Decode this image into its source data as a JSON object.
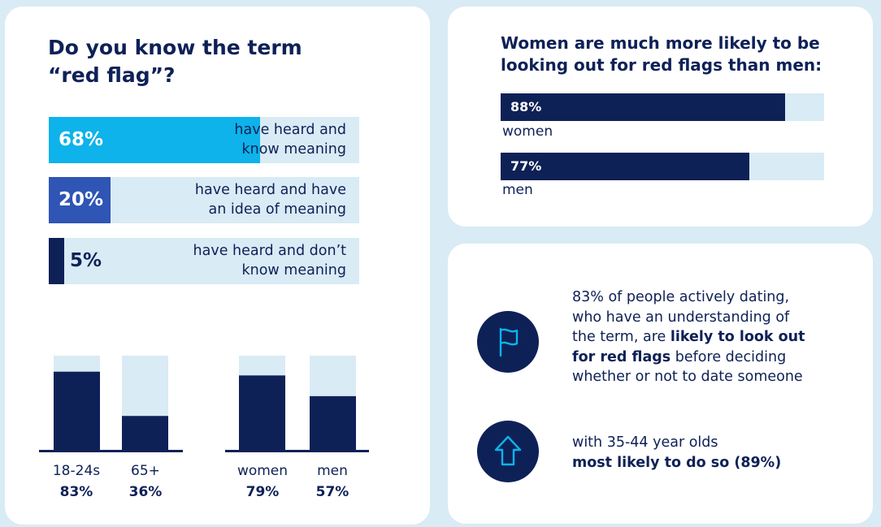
{
  "left_card": {
    "title_line1": "Do you know the term",
    "title_line2": "“red flag”?"
  },
  "awareness_bars": [
    {
      "pct": "68%",
      "value": 68,
      "desc_line1": "have heard and",
      "desc_line2": "know meaning",
      "color": "#0db3ea"
    },
    {
      "pct": "20%",
      "value": 20,
      "desc_line1": "have heard and have",
      "desc_line2": "an idea of meaning",
      "color": "#2f55b5"
    },
    {
      "pct": "5%",
      "value": 5,
      "desc_line1": "have heard and don’t",
      "desc_line2": "know meaning",
      "color": "#0e2157"
    }
  ],
  "chart_data": [
    {
      "type": "bar",
      "orientation": "horizontal",
      "title": "Do you know the term “red flag”?",
      "categories": [
        "have heard and know meaning",
        "have heard and have an idea of meaning",
        "have heard and don’t know meaning"
      ],
      "values": [
        68,
        20,
        5
      ],
      "ylim": [
        0,
        100
      ]
    },
    {
      "type": "bar",
      "orientation": "vertical",
      "categories": [
        "18-24s",
        "65+"
      ],
      "values": [
        83,
        36
      ],
      "value_labels": [
        "83%",
        "36%"
      ],
      "ylim": [
        0,
        100
      ]
    },
    {
      "type": "bar",
      "orientation": "vertical",
      "categories": [
        "women",
        "men"
      ],
      "values": [
        79,
        57
      ],
      "value_labels": [
        "79%",
        "57%"
      ],
      "ylim": [
        0,
        100
      ]
    },
    {
      "type": "bar",
      "orientation": "horizontal",
      "title": "Women are much more likely to be looking out for red flags than men:",
      "categories": [
        "women",
        "men"
      ],
      "values": [
        88,
        77
      ],
      "value_labels": [
        "88%",
        "77%"
      ],
      "ylim": [
        0,
        100
      ]
    }
  ],
  "colors": {
    "navy": "#0e2157",
    "track": "#d9ebf4",
    "cyan": "#0db3ea",
    "blue": "#2f55b5"
  },
  "top_right_card": {
    "title_line1": "Women are much more likely to be",
    "title_line2": "looking out for red flags than men:"
  },
  "bottom_right_card": {
    "stat1_line1": "83% of people actively dating,",
    "stat1_line2": "who have an understanding of",
    "stat1_line3_pre": "the term, are ",
    "stat1_line3_bold": "likely to look out",
    "stat1_line4_bold": "for red flags",
    "stat1_line4_post": " before deciding",
    "stat1_line5": "whether or not to date someone",
    "stat2_line1": "with 35-44 year olds",
    "stat2_line2_bold": "most likely to do so (89%)",
    "icon1": "flag-icon",
    "icon2": "arrow-up-icon"
  }
}
